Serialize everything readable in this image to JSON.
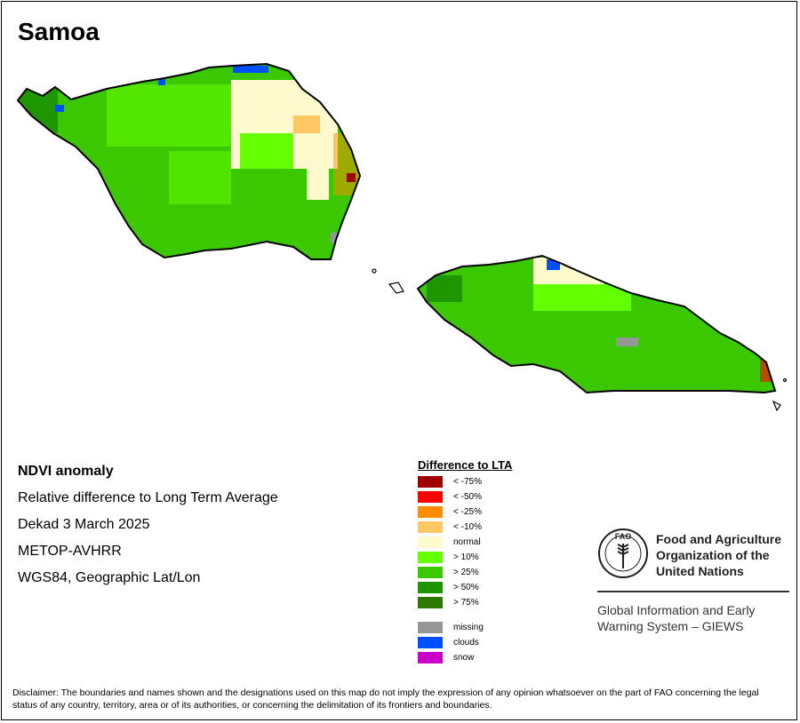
{
  "title": "Samoa",
  "info": {
    "line1": "NDVI anomaly",
    "line2": "Relative difference to Long Term Average",
    "line3": "Dekad 3 March 2025",
    "line4": "METOP-AVHRR",
    "line5": "WGS84, Geographic Lat/Lon"
  },
  "legend": {
    "title": "Difference to LTA",
    "items": [
      {
        "label": "< -75%",
        "color": "#a00000"
      },
      {
        "label": "< -50%",
        "color": "#ff0000"
      },
      {
        "label": "< -25%",
        "color": "#ff8c00"
      },
      {
        "label": "< -10%",
        "color": "#ffc864"
      },
      {
        "label": "normal",
        "color": "#fffacd"
      },
      {
        "label": "> 10%",
        "color": "#64ff00"
      },
      {
        "label": "> 25%",
        "color": "#3cc800"
      },
      {
        "label": "> 50%",
        "color": "#1e9600"
      },
      {
        "label": "> 75%",
        "color": "#2d7800"
      },
      {
        "label": "missing",
        "color": "#969696"
      },
      {
        "label": "clouds",
        "color": "#0050ff"
      },
      {
        "label": "snow",
        "color": "#c800c8"
      }
    ]
  },
  "organization": {
    "logo_letters": "FAO",
    "name_line1": "Food and Agriculture",
    "name_line2": "Organization of the",
    "name_line3": "United Nations",
    "giews_line1": "Global Information and Early",
    "giews_line2": "Warning System – GIEWS"
  },
  "disclaimer": "Disclaimer: The boundaries and names shown and the designations used on this map do not imply the expression of any opinion whatsoever on the part of FAO concerning the legal status of any country, territory, area or of its authorities, or concerning the delimitation of its frontiers and boundaries."
}
